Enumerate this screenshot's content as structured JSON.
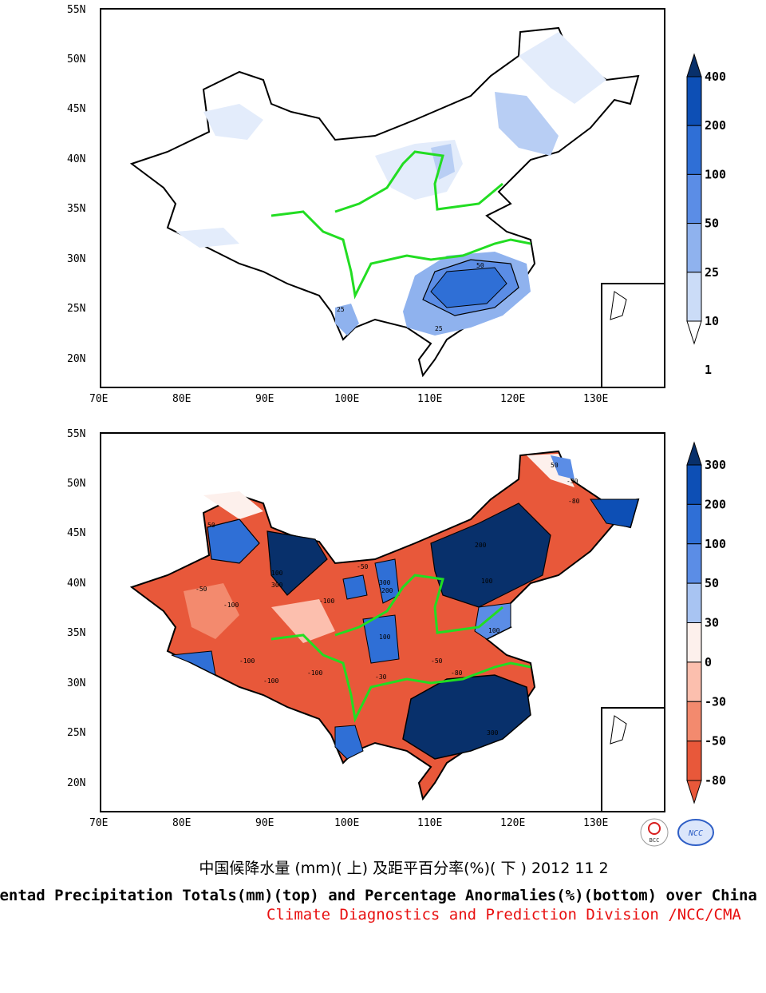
{
  "top_map": {
    "lat_labels": [
      "55N",
      "50N",
      "45N",
      "40N",
      "35N",
      "30N",
      "25N",
      "20N"
    ],
    "lon_labels": [
      "70E",
      "80E",
      "90E",
      "100E",
      "110E",
      "120E",
      "130E"
    ],
    "colorbar": {
      "labels": [
        "400",
        "200",
        "100",
        "50",
        "25",
        "10",
        "1"
      ],
      "colors": [
        "#08306b",
        "#0d4fb5",
        "#2f6fd6",
        "#5b8de6",
        "#8fb2ee",
        "#cbdcf7",
        "#ffffff"
      ]
    },
    "contour_labels": [
      "50",
      "25",
      "25"
    ]
  },
  "bottom_map": {
    "lat_labels": [
      "55N",
      "50N",
      "45N",
      "40N",
      "35N",
      "30N",
      "25N",
      "20N"
    ],
    "lon_labels": [
      "70E",
      "80E",
      "90E",
      "100E",
      "110E",
      "120E",
      "130E"
    ],
    "colorbar": {
      "labels": [
        "300",
        "200",
        "100",
        "50",
        "30",
        "0",
        "-30",
        "-50",
        "-80"
      ],
      "colors": [
        "#08306b",
        "#0d4fb5",
        "#2f6fd6",
        "#5b8de6",
        "#a8c4f2",
        "#fdf0ec",
        "#fcbfae",
        "#f38a6e",
        "#e8583a",
        "#e8583a"
      ]
    },
    "contour_labels": [
      "-100",
      "-100",
      "-50",
      "50",
      "100",
      "300",
      "200",
      "-30",
      "-80",
      "100",
      "-100",
      "-50",
      "100",
      "200",
      "300",
      "-100",
      "-80",
      "-50",
      "100",
      "-100",
      "-30",
      "50",
      "300"
    ]
  },
  "footer": {
    "title_cn": "中国候降水量 (mm)( 上) 及距平百分率(%)( 下 ) 2012 11 2",
    "title_en": "Pentad Precipitation Totals(mm)(top) and Percentage Anormalies(%)(bottom) over China",
    "credit": "Climate Diagnostics and Prediction Division /NCC/CMA",
    "logo_left": "BCC",
    "logo_right": "NCC"
  }
}
